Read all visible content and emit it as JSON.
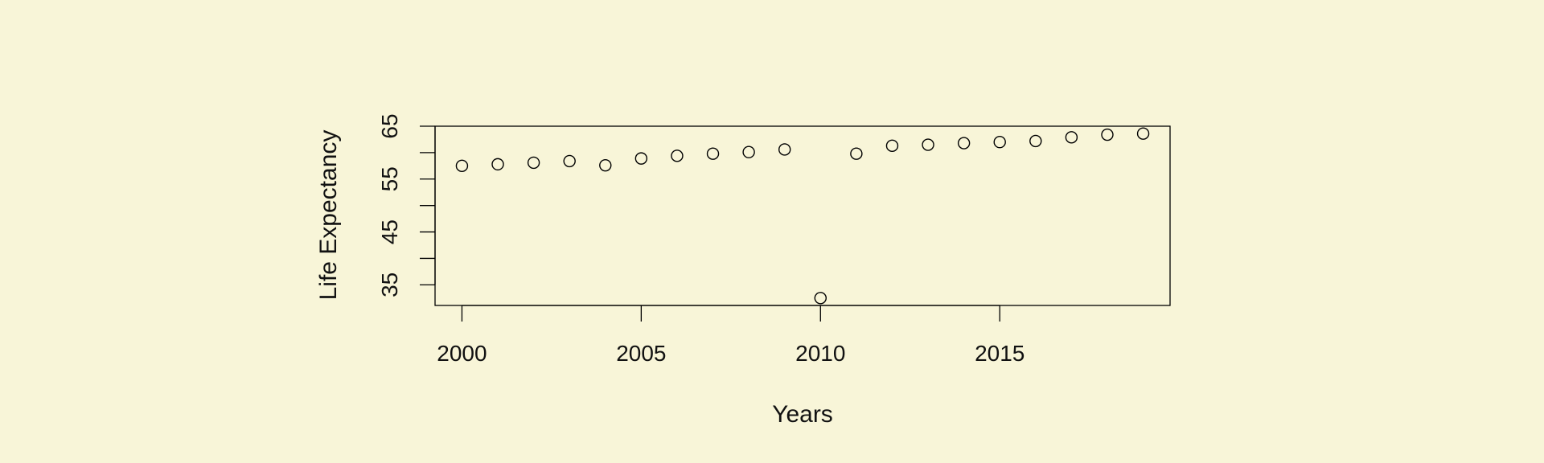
{
  "chart_data": {
    "type": "scatter",
    "title": "",
    "xlabel": "Years",
    "ylabel": "Life Expectancy",
    "x": [
      2000,
      2001,
      2002,
      2003,
      2004,
      2005,
      2006,
      2007,
      2008,
      2009,
      2010,
      2011,
      2012,
      2013,
      2014,
      2015,
      2016,
      2017,
      2018,
      2019
    ],
    "y": [
      57.5,
      57.8,
      58.1,
      58.4,
      57.6,
      58.9,
      59.4,
      59.8,
      60.1,
      60.6,
      32.5,
      59.8,
      61.3,
      61.5,
      61.8,
      62.0,
      62.2,
      62.9,
      63.4,
      63.6
    ],
    "xticks": [
      2000,
      2005,
      2010,
      2015
    ],
    "xtick_labels": [
      "2000",
      "2005",
      "2010",
      "2015"
    ],
    "yticks": [
      35,
      40,
      45,
      50,
      55,
      60,
      65
    ],
    "ytick_labels": [
      "35",
      "",
      "45",
      "",
      "55",
      "",
      "65"
    ],
    "xlim": [
      1999.25,
      2019.75
    ],
    "ylim": [
      31.1,
      65
    ],
    "grid": false,
    "marker": "open-circle",
    "colors": {
      "background": "#f8f5d8",
      "ink": "#000000"
    }
  }
}
